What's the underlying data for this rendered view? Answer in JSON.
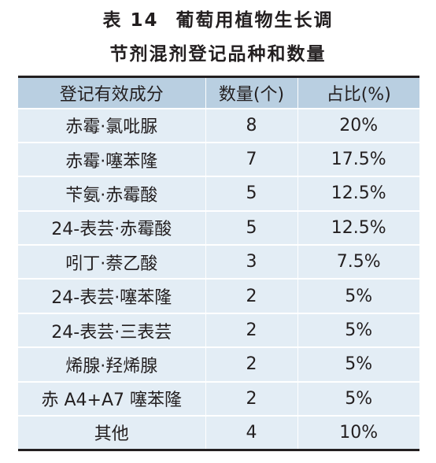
{
  "title": {
    "table_no": "表 14",
    "line1": "葡萄用植物生长调",
    "line2": "节剂混剂登记品种和数量"
  },
  "table": {
    "headers": [
      "登记有效成分",
      "数量(个)",
      "占比(%)"
    ],
    "rows": [
      [
        "赤霉·氯吡脲",
        "8",
        "20%"
      ],
      [
        "赤霉·噻苯隆",
        "7",
        "17.5%"
      ],
      [
        "苄氨·赤霉酸",
        "5",
        "12.5%"
      ],
      [
        "24-表芸·赤霉酸",
        "5",
        "12.5%"
      ],
      [
        "吲丁·萘乙酸",
        "3",
        "7.5%"
      ],
      [
        "24-表芸·噻苯隆",
        "2",
        "5%"
      ],
      [
        "24-表芸·三表芸",
        "2",
        "5%"
      ],
      [
        "烯腺·羟烯腺",
        "2",
        "5%"
      ],
      [
        "赤 A4+A7 噻苯隆",
        "2",
        "5%"
      ],
      [
        "其他",
        "4",
        "10%"
      ]
    ]
  },
  "colors": {
    "header_bg": "#b9cfe1",
    "row_bg": "#e3edf5",
    "rule": "#231f20"
  }
}
